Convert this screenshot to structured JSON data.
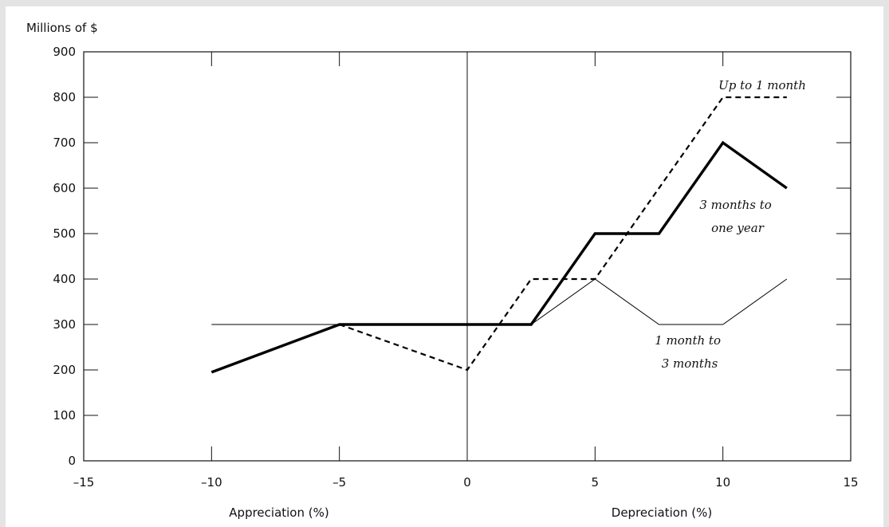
{
  "chart_data": {
    "type": "line",
    "ylabel": "Millions of $",
    "xlabel_left": "Appreciation (%)",
    "xlabel_right": "Depreciation (%)",
    "xlim": [
      -15,
      15
    ],
    "ylim": [
      0,
      900
    ],
    "xticks": [
      -15,
      -10,
      -5,
      0,
      5,
      10,
      15
    ],
    "xtick_labels": [
      "–15",
      "–10",
      "–5",
      "0",
      "5",
      "10",
      "15"
    ],
    "yticks": [
      0,
      100,
      200,
      300,
      400,
      500,
      600,
      700,
      800,
      900
    ],
    "ytick_labels": [
      "0",
      "100",
      "200",
      "300",
      "400",
      "500",
      "600",
      "700",
      "800",
      "900"
    ],
    "grid": false,
    "vertical_reference_line_x": 0,
    "series": [
      {
        "name": "Up to 1 month",
        "style": "dashed",
        "color": "#000000",
        "x": [
          -5,
          0,
          2.5,
          5,
          10,
          12.5
        ],
        "y": [
          300,
          200,
          400,
          400,
          800,
          800
        ]
      },
      {
        "name": "1 month to\n3 months",
        "label_lines": [
          "1 month to",
          "3 months"
        ],
        "style": "thin",
        "color": "#000000",
        "x": [
          -10,
          2.5,
          5,
          7.5,
          10,
          12.5
        ],
        "y": [
          300,
          300,
          400,
          300,
          300,
          400
        ]
      },
      {
        "name": "3 months to\none year",
        "label_lines": [
          "3 months to",
          "one year"
        ],
        "style": "thick",
        "color": "#000000",
        "x": [
          -10,
          -5,
          2.5,
          5,
          7.5,
          10,
          12.5
        ],
        "y": [
          195,
          300,
          300,
          500,
          500,
          700,
          600
        ]
      }
    ]
  }
}
